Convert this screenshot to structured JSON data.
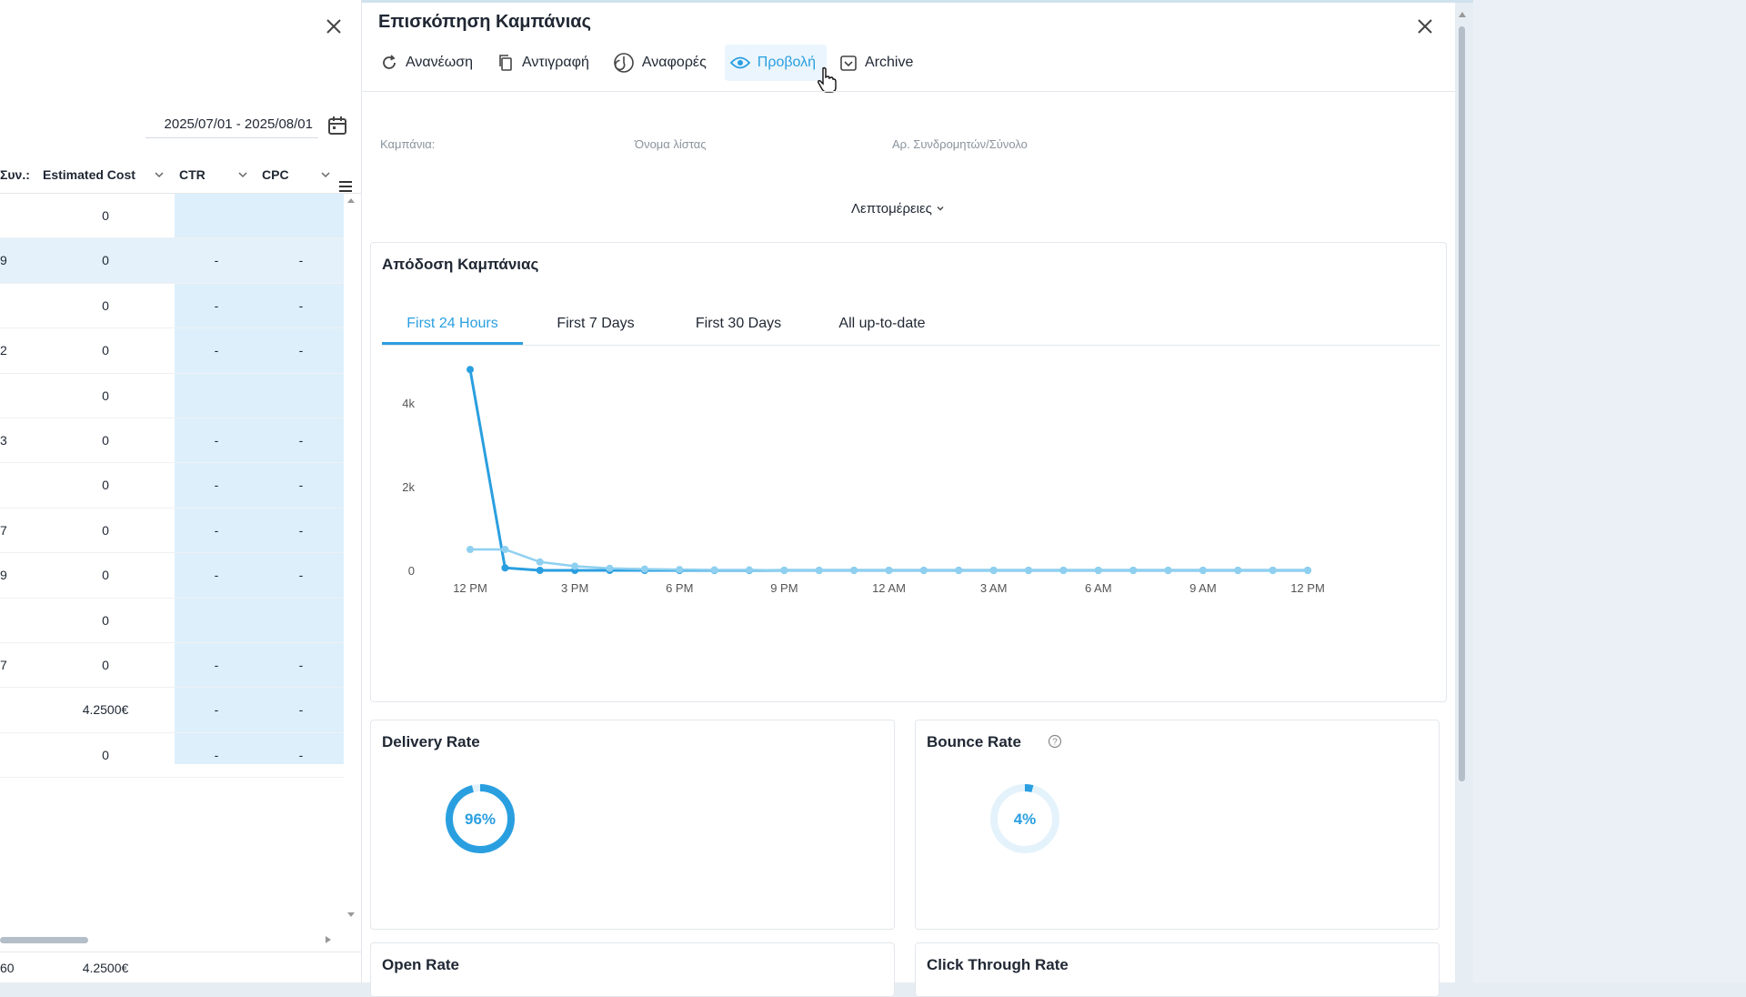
{
  "left_panel": {
    "date_range": "2025/07/01 - 2025/08/01",
    "columns": [
      "Συν.:",
      "Estimated Cost",
      "CTR",
      "CPC"
    ],
    "rows": [
      {
        "c0": "",
        "cost": "0",
        "ctr": "",
        "cpc": ""
      },
      {
        "c0": "9",
        "cost": "0",
        "ctr": "-",
        "cpc": "-"
      },
      {
        "c0": "",
        "cost": "0",
        "ctr": "-",
        "cpc": "-"
      },
      {
        "c0": "2",
        "cost": "0",
        "ctr": "-",
        "cpc": "-"
      },
      {
        "c0": "",
        "cost": "0",
        "ctr": "",
        "cpc": ""
      },
      {
        "c0": "3",
        "cost": "0",
        "ctr": "-",
        "cpc": "-"
      },
      {
        "c0": "",
        "cost": "0",
        "ctr": "-",
        "cpc": "-"
      },
      {
        "c0": "7",
        "cost": "0",
        "ctr": "-",
        "cpc": "-"
      },
      {
        "c0": "9",
        "cost": "0",
        "ctr": "-",
        "cpc": "-"
      },
      {
        "c0": "",
        "cost": "0",
        "ctr": "",
        "cpc": ""
      },
      {
        "c0": "7",
        "cost": "0",
        "ctr": "-",
        "cpc": "-"
      },
      {
        "c0": "",
        "cost": "4.2500€",
        "ctr": "-",
        "cpc": "-"
      },
      {
        "c0": "",
        "cost": "0",
        "ctr": "-",
        "cpc": "-"
      }
    ],
    "footer": {
      "c0": "60",
      "cost": "4.2500€"
    }
  },
  "main": {
    "title": "Επισκόπηση Καμπάνιας",
    "toolbar": {
      "refresh": "Ανανέωση",
      "copy": "Αντιγραφή",
      "reports": "Αναφορές",
      "view": "Προβολή",
      "archive": "Archive"
    },
    "info": {
      "campaign": "Καμπάνια:",
      "list_name": "Όνομα λίστας",
      "subscribers": "Αρ. Συνδρομητών/Σύνολο"
    },
    "details": "Λεπτομέρειες",
    "performance": {
      "title": "Απόδοση Καμπάνιας",
      "tabs": [
        "First 24 Hours",
        "First 7 Days",
        "First 30 Days",
        "All up-to-date"
      ],
      "active_tab": 0
    },
    "delivery": {
      "title": "Delivery Rate",
      "value": "96%",
      "fraction": 0.96
    },
    "bounce": {
      "title": "Bounce Rate",
      "value": "4%",
      "fraction": 0.04
    },
    "open_rate": {
      "title": "Open Rate"
    },
    "ctr": {
      "title": "Click Through Rate"
    }
  },
  "colors": {
    "accent": "#2a9fe0",
    "line_light": "#8fd0f0",
    "highlight": "#ddeffb"
  },
  "chart_data": {
    "type": "line",
    "x_tick_labels": [
      "12 PM",
      "3 PM",
      "6 PM",
      "9 PM",
      "12 AM",
      "3 AM",
      "6 AM",
      "9 AM",
      "12 PM"
    ],
    "y_tick_labels": [
      "0",
      "2k",
      "4k"
    ],
    "ylim": [
      0,
      5000
    ],
    "x_hours": [
      0,
      1,
      2,
      3,
      4,
      5,
      6,
      7,
      8,
      9,
      10,
      11,
      12,
      13,
      14,
      15,
      16,
      17,
      18,
      19,
      20,
      21,
      22,
      23,
      24
    ],
    "series": [
      {
        "values": [
          4800,
          60,
          0,
          0,
          0,
          0,
          0,
          0,
          0,
          0,
          0,
          0,
          0,
          0,
          0,
          0,
          0,
          0,
          0,
          0,
          0,
          0,
          0,
          0,
          0
        ]
      },
      {
        "values": [
          500,
          500,
          200,
          100,
          50,
          30,
          20,
          10,
          10,
          0,
          0,
          0,
          0,
          0,
          0,
          0,
          0,
          0,
          0,
          0,
          0,
          0,
          0,
          0,
          0
        ]
      }
    ]
  }
}
